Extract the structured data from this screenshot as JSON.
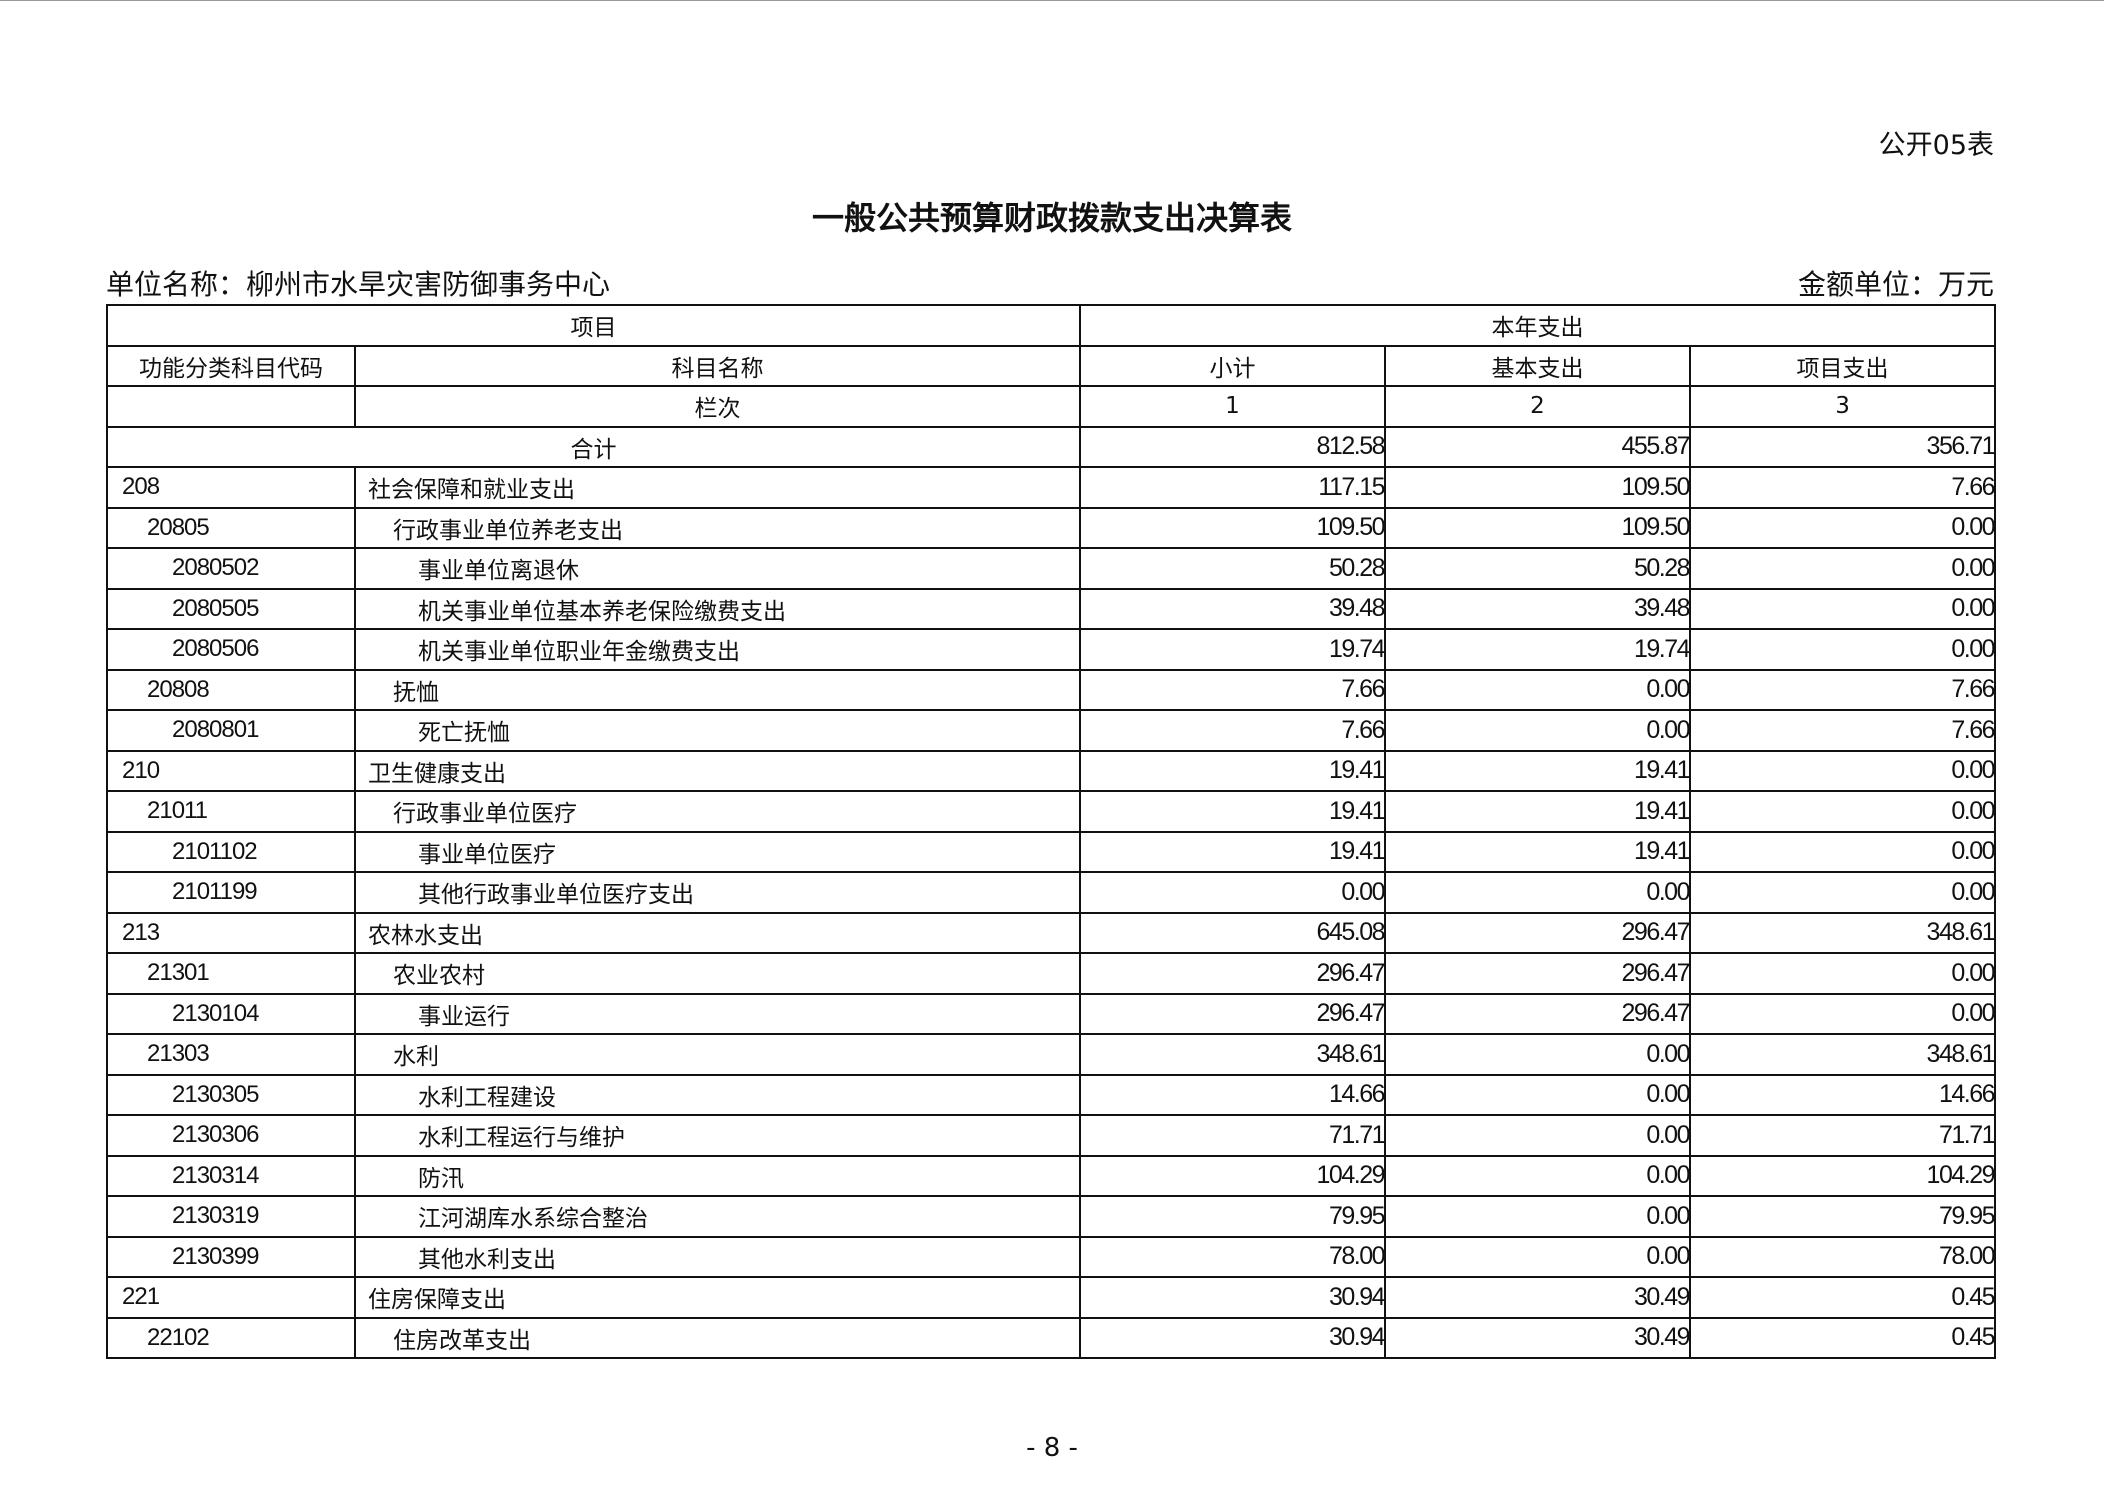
{
  "form_no": "公开05表",
  "title": "一般公共预算财政拨款支出决算表",
  "unit_name": "单位名称：柳州市水旱灾害防御事务中心",
  "amount_unit": "金额单位：万元",
  "header": {
    "item": "项目",
    "current_year": "本年支出",
    "code": "功能分类科目代码",
    "name": "科目名称",
    "subtotal": "小计",
    "basic": "基本支出",
    "project": "项目支出",
    "column_no": "栏次",
    "col1": "1",
    "col2": "2",
    "col3": "3"
  },
  "total": {
    "label": "合计",
    "subtotal": "812.58",
    "basic": "455.87",
    "project": "356.71"
  },
  "rows": [
    {
      "level": 1,
      "code": "208",
      "name": "社会保障和就业支出",
      "subtotal": "117.15",
      "basic": "109.50",
      "project": "7.66"
    },
    {
      "level": 2,
      "code": "20805",
      "name": "行政事业单位养老支出",
      "subtotal": "109.50",
      "basic": "109.50",
      "project": "0.00"
    },
    {
      "level": 3,
      "code": "2080502",
      "name": "事业单位离退休",
      "subtotal": "50.28",
      "basic": "50.28",
      "project": "0.00"
    },
    {
      "level": 3,
      "code": "2080505",
      "name": "机关事业单位基本养老保险缴费支出",
      "subtotal": "39.48",
      "basic": "39.48",
      "project": "0.00"
    },
    {
      "level": 3,
      "code": "2080506",
      "name": "机关事业单位职业年金缴费支出",
      "subtotal": "19.74",
      "basic": "19.74",
      "project": "0.00"
    },
    {
      "level": 2,
      "code": "20808",
      "name": "抚恤",
      "subtotal": "7.66",
      "basic": "0.00",
      "project": "7.66"
    },
    {
      "level": 3,
      "code": "2080801",
      "name": "死亡抚恤",
      "subtotal": "7.66",
      "basic": "0.00",
      "project": "7.66"
    },
    {
      "level": 1,
      "code": "210",
      "name": "卫生健康支出",
      "subtotal": "19.41",
      "basic": "19.41",
      "project": "0.00"
    },
    {
      "level": 2,
      "code": "21011",
      "name": "行政事业单位医疗",
      "subtotal": "19.41",
      "basic": "19.41",
      "project": "0.00"
    },
    {
      "level": 3,
      "code": "2101102",
      "name": "事业单位医疗",
      "subtotal": "19.41",
      "basic": "19.41",
      "project": "0.00"
    },
    {
      "level": 3,
      "code": "2101199",
      "name": "其他行政事业单位医疗支出",
      "subtotal": "0.00",
      "basic": "0.00",
      "project": "0.00"
    },
    {
      "level": 1,
      "code": "213",
      "name": "农林水支出",
      "subtotal": "645.08",
      "basic": "296.47",
      "project": "348.61"
    },
    {
      "level": 2,
      "code": "21301",
      "name": "农业农村",
      "subtotal": "296.47",
      "basic": "296.47",
      "project": "0.00"
    },
    {
      "level": 3,
      "code": "2130104",
      "name": "事业运行",
      "subtotal": "296.47",
      "basic": "296.47",
      "project": "0.00"
    },
    {
      "level": 2,
      "code": "21303",
      "name": "水利",
      "subtotal": "348.61",
      "basic": "0.00",
      "project": "348.61"
    },
    {
      "level": 3,
      "code": "2130305",
      "name": "水利工程建设",
      "subtotal": "14.66",
      "basic": "0.00",
      "project": "14.66"
    },
    {
      "level": 3,
      "code": "2130306",
      "name": "水利工程运行与维护",
      "subtotal": "71.71",
      "basic": "0.00",
      "project": "71.71"
    },
    {
      "level": 3,
      "code": "2130314",
      "name": "防汛",
      "subtotal": "104.29",
      "basic": "0.00",
      "project": "104.29"
    },
    {
      "level": 3,
      "code": "2130319",
      "name": "江河湖库水系综合整治",
      "subtotal": "79.95",
      "basic": "0.00",
      "project": "79.95"
    },
    {
      "level": 3,
      "code": "2130399",
      "name": "其他水利支出",
      "subtotal": "78.00",
      "basic": "0.00",
      "project": "78.00"
    },
    {
      "level": 1,
      "code": "221",
      "name": "住房保障支出",
      "subtotal": "30.94",
      "basic": "30.49",
      "project": "0.45"
    },
    {
      "level": 2,
      "code": "22102",
      "name": "住房改革支出",
      "subtotal": "30.94",
      "basic": "30.49",
      "project": "0.45"
    }
  ],
  "page_number": "- 8 -"
}
